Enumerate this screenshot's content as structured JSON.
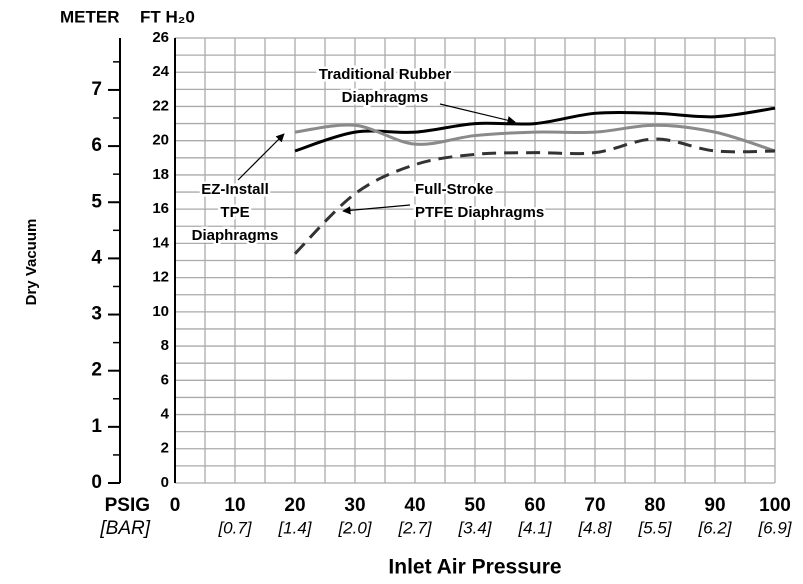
{
  "chart_data": {
    "type": "line",
    "y_title": "Dry Vacuum",
    "x_title": "Inlet Air Pressure",
    "y_unit_label": "FT H₂0",
    "y_meter_unit_label": "METER",
    "x_unit_label": "PSIG",
    "x_bar_unit_label": "[BAR]",
    "x": [
      20,
      30,
      40,
      50,
      60,
      70,
      80,
      90,
      100
    ],
    "series": [
      {
        "name": "Traditional Rubber Diaphragms",
        "color": "#000000",
        "dash": false,
        "values": [
          19.4,
          20.5,
          20.5,
          21.0,
          21.0,
          21.6,
          21.6,
          21.4,
          21.9
        ]
      },
      {
        "name": "EZ-Install TPE Diaphragms",
        "color": "#8a8a8a",
        "dash": false,
        "values": [
          20.5,
          20.9,
          19.8,
          20.3,
          20.5,
          20.5,
          20.9,
          20.5,
          19.4
        ]
      },
      {
        "name": "Full-Stroke PTFE Diaphragms",
        "color": "#333333",
        "dash": true,
        "values": [
          13.4,
          16.9,
          18.6,
          19.2,
          19.3,
          19.3,
          20.1,
          19.4,
          19.4
        ]
      }
    ],
    "annotations": [
      {
        "lines": [
          "Traditional Rubber",
          "Diaphragms"
        ]
      },
      {
        "lines": [
          "EZ-Install",
          "TPE",
          "Diaphragms"
        ]
      },
      {
        "lines": [
          "Full-Stroke",
          "PTFE Diaphragms"
        ]
      }
    ],
    "xlim": [
      0,
      100
    ],
    "xticks": [
      0,
      10,
      20,
      30,
      40,
      50,
      60,
      70,
      80,
      90,
      100
    ],
    "x_bar_labels": [
      null,
      "[0.7]",
      "[1.4]",
      "[2.0]",
      "[2.7]",
      "[3.4]",
      "[4.1]",
      "[4.8]",
      "[5.5]",
      "[6.2]",
      "[6.9]"
    ],
    "x_grid": [
      0,
      5,
      10,
      15,
      20,
      25,
      30,
      35,
      40,
      45,
      50,
      55,
      60,
      65,
      70,
      75,
      80,
      85,
      90,
      95,
      100
    ],
    "ylim": [
      0,
      26
    ],
    "yticks": [
      0,
      2,
      4,
      6,
      8,
      10,
      12,
      14,
      16,
      18,
      20,
      22,
      24,
      26
    ],
    "y_grid": [
      0,
      1,
      2,
      3,
      4,
      5,
      6,
      7,
      8,
      9,
      10,
      11,
      12,
      13,
      14,
      15,
      16,
      17,
      18,
      19,
      20,
      21,
      22,
      23,
      24,
      25,
      26
    ],
    "y_meter_lim": [
      0,
      7.925
    ],
    "y_meter_ticks": [
      0,
      1,
      2,
      3,
      4,
      5,
      6,
      7
    ],
    "y_meter_minor_ticks": [
      0.5,
      1.5,
      2.5,
      3.5,
      4.5,
      5.5,
      6.5,
      7.5
    ],
    "grid": true
  }
}
